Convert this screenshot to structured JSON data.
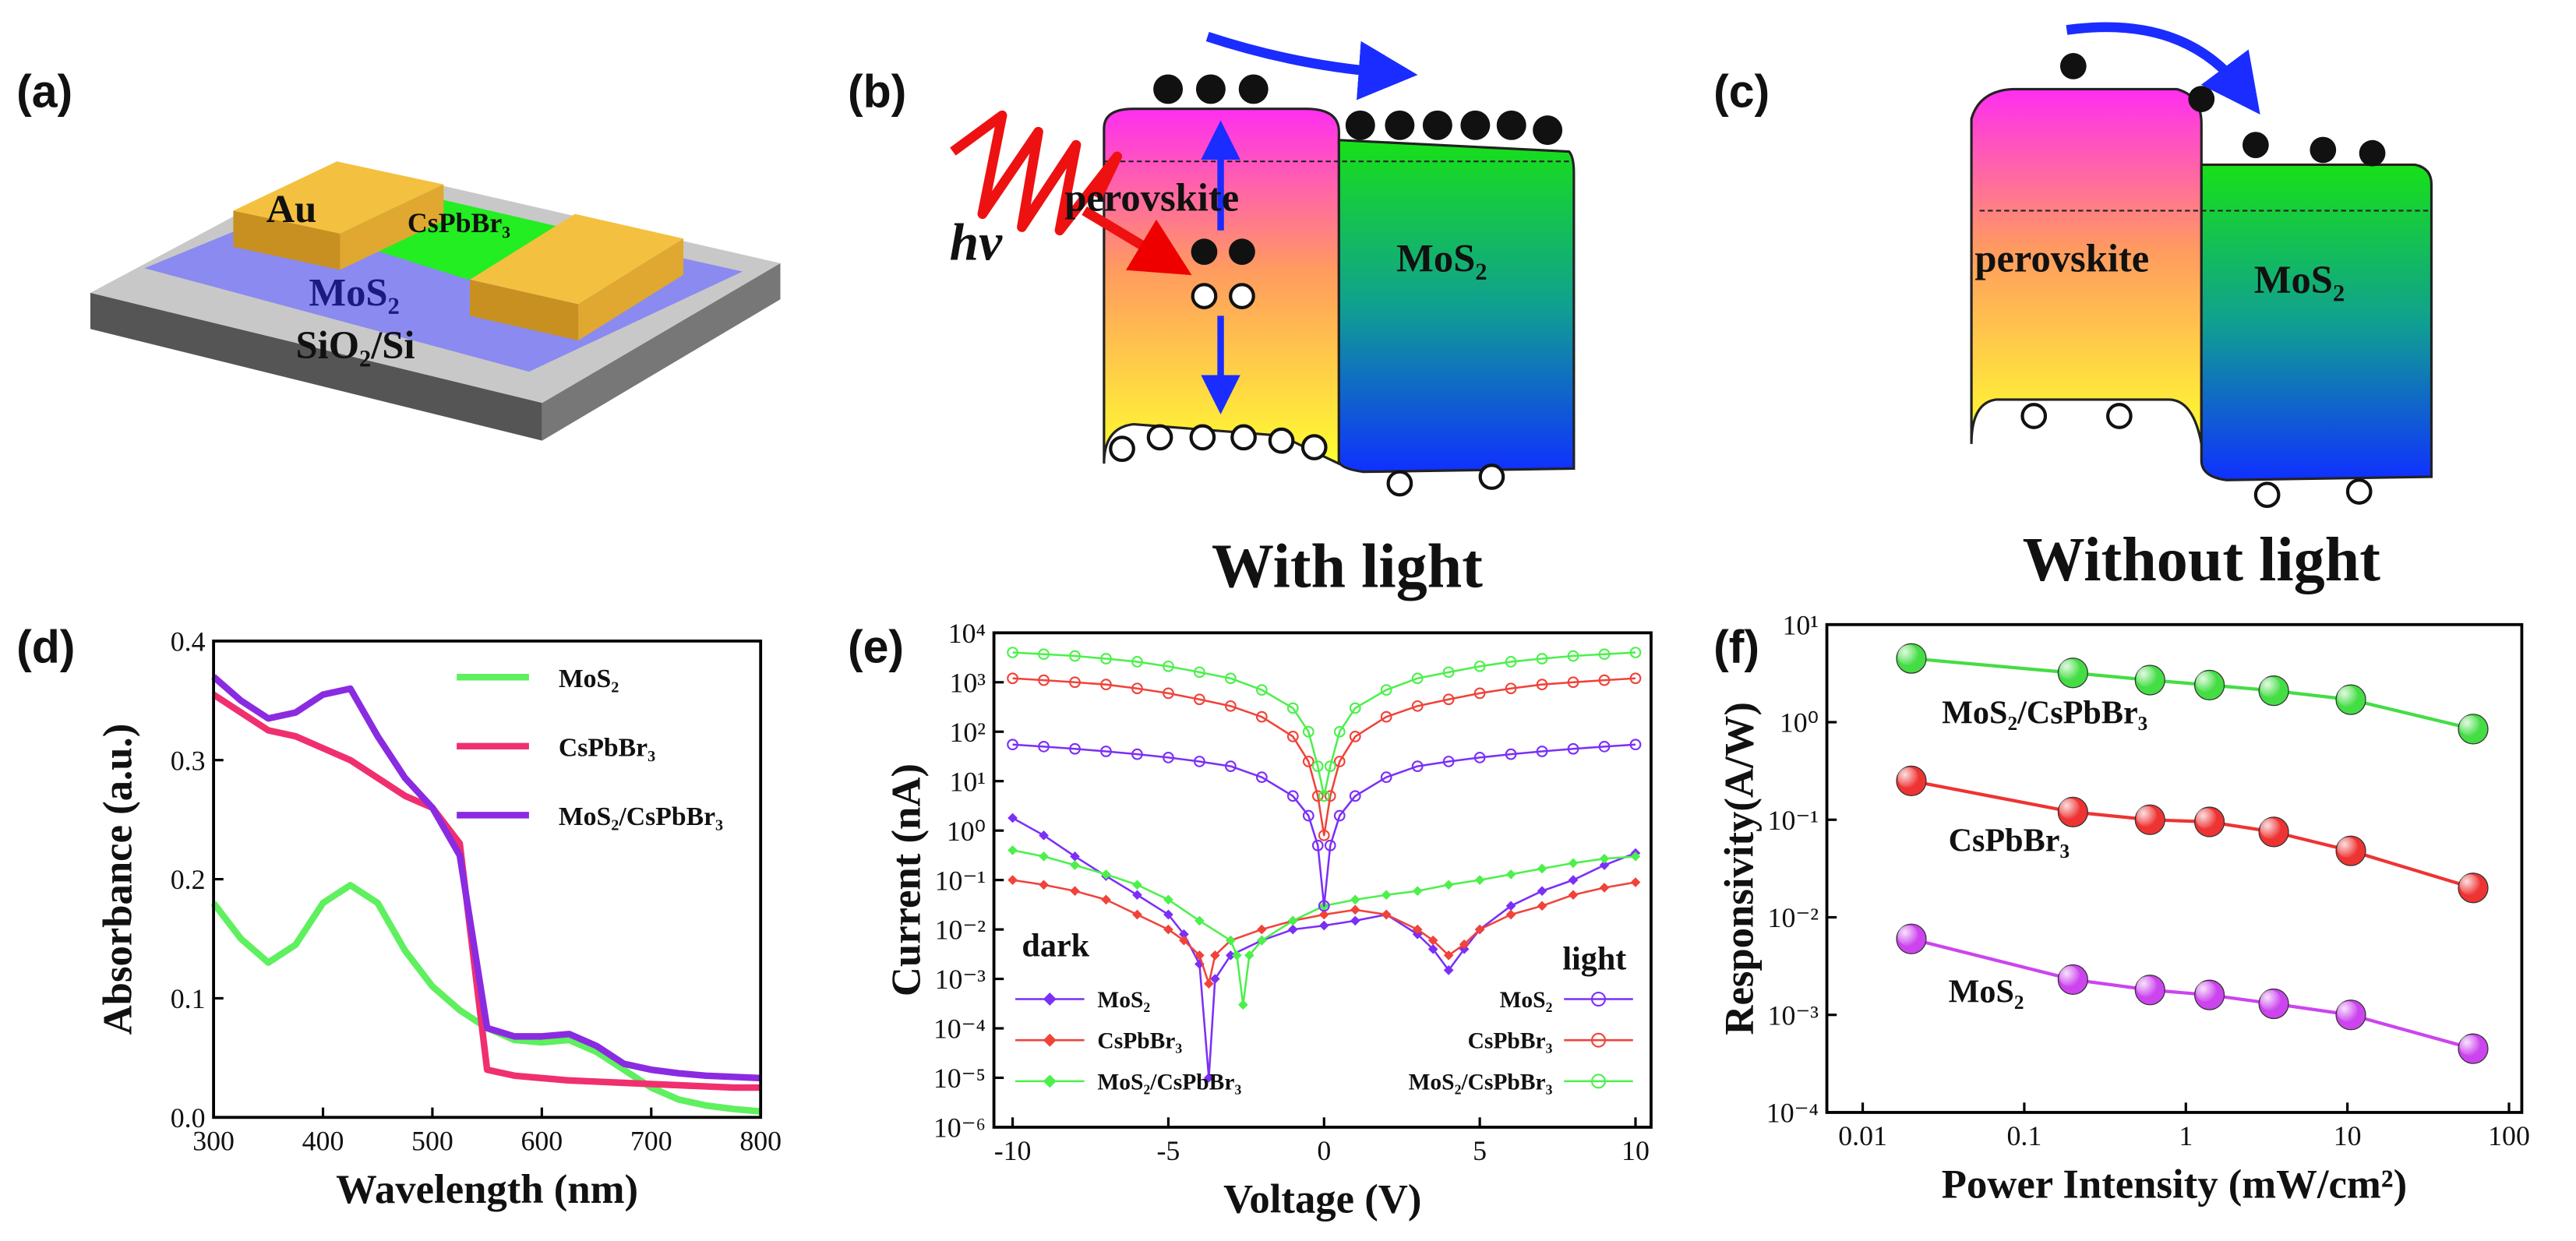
{
  "panel_labels": [
    "(a)",
    "(b)",
    "(c)",
    "(d)",
    "(e)",
    "(f)"
  ],
  "diagrams": {
    "a": {
      "labels": [
        "Au",
        "CsPbBr₃",
        "MoS₂",
        "SiO₂/Si"
      ]
    },
    "b": {
      "light": "hv",
      "left": "perovskite",
      "right": "MoS₂",
      "caption": "With light"
    },
    "c": {
      "left": "perovskite",
      "right": "MoS₂",
      "caption": "Without light"
    }
  },
  "chart_data": [
    {
      "type": "line",
      "xlabel": "Wavelength (nm)",
      "ylabel": "Absorbance (a.u.)",
      "xlim": [
        300,
        800
      ],
      "xticks": [
        300,
        400,
        500,
        600,
        700,
        800
      ],
      "ylim": [
        0,
        0.4
      ],
      "yticks": [
        {
          "value": 0,
          "label": "0.0"
        },
        0.1,
        0.2,
        0.3,
        0.4
      ],
      "legend": "upper right",
      "series": [
        {
          "name": "MoS₂",
          "color": "#5ef05e",
          "x": [
            300,
            325,
            350,
            375,
            400,
            425,
            450,
            475,
            500,
            525,
            550,
            575,
            600,
            625,
            650,
            675,
            700,
            725,
            750,
            775,
            800
          ],
          "values": [
            0.18,
            0.15,
            0.13,
            0.145,
            0.18,
            0.195,
            0.18,
            0.14,
            0.11,
            0.09,
            0.075,
            0.065,
            0.063,
            0.065,
            0.055,
            0.04,
            0.025,
            0.015,
            0.01,
            0.007,
            0.005
          ]
        },
        {
          "name": "CsPbBr₃",
          "color": "#f0306e",
          "x": [
            300,
            325,
            350,
            375,
            400,
            425,
            450,
            475,
            500,
            525,
            550,
            575,
            600,
            625,
            650,
            675,
            700,
            725,
            750,
            775,
            800
          ],
          "values": [
            0.355,
            0.34,
            0.325,
            0.32,
            0.31,
            0.3,
            0.285,
            0.27,
            0.26,
            0.23,
            0.04,
            0.035,
            0.033,
            0.031,
            0.03,
            0.029,
            0.028,
            0.027,
            0.026,
            0.025,
            0.025
          ]
        },
        {
          "name": "MoS₂/CsPbBr₃",
          "color": "#8a2be2",
          "x": [
            300,
            325,
            350,
            375,
            400,
            425,
            450,
            475,
            500,
            525,
            550,
            575,
            600,
            625,
            650,
            675,
            700,
            725,
            750,
            775,
            800
          ],
          "values": [
            0.37,
            0.35,
            0.335,
            0.34,
            0.355,
            0.36,
            0.32,
            0.285,
            0.26,
            0.22,
            0.075,
            0.068,
            0.068,
            0.07,
            0.06,
            0.045,
            0.04,
            0.037,
            0.035,
            0.034,
            0.033
          ]
        }
      ]
    },
    {
      "type": "line",
      "xlabel": "Voltage (V)",
      "ylabel": "Current (nA)",
      "yscale": "log",
      "xlim": [
        -10.6,
        10.5
      ],
      "xticks": [
        -10,
        -5,
        0,
        5,
        10
      ],
      "ylim": [
        1e-06,
        10000
      ],
      "yticks": [
        {
          "value": 1e-06,
          "label": "10⁻⁶"
        },
        {
          "value": 1e-05,
          "label": "10⁻⁵"
        },
        {
          "value": 0.0001,
          "label": "10⁻⁴"
        },
        {
          "value": 0.001,
          "label": "10⁻³"
        },
        {
          "value": 0.01,
          "label": "10⁻²"
        },
        {
          "value": 0.1,
          "label": "10⁻¹"
        },
        {
          "value": 1,
          "label": "10⁰"
        },
        {
          "value": 10,
          "label": "10¹"
        },
        {
          "value": 100,
          "label": "10²"
        },
        {
          "value": 1000,
          "label": "10³"
        },
        {
          "value": 10000,
          "label": "10⁴"
        }
      ],
      "annotations": [
        "dark",
        "light"
      ],
      "series": [
        {
          "name": "MoS₂",
          "color": "#7b2ff7",
          "marker": "diamond",
          "x": [
            -10,
            -9,
            -8,
            -7,
            -6,
            -5,
            -4.5,
            -4,
            -3.7,
            -3.5,
            -3,
            -2,
            -1,
            0,
            1,
            2,
            3,
            3.5,
            4,
            4.5,
            5,
            6,
            7,
            8,
            9,
            10
          ],
          "values": [
            1.8,
            0.8,
            0.3,
            0.12,
            0.05,
            0.02,
            0.008,
            0.002,
            1e-05,
            0.001,
            0.003,
            0.006,
            0.01,
            0.012,
            0.015,
            0.02,
            0.008,
            0.004,
            0.0015,
            0.004,
            0.01,
            0.03,
            0.06,
            0.1,
            0.2,
            0.35
          ]
        },
        {
          "name": "CsPbBr₃",
          "color": "#f0433a",
          "marker": "diamond",
          "x": [
            -10,
            -9,
            -8,
            -7,
            -6,
            -5,
            -4.5,
            -4,
            -3.7,
            -3.5,
            -3,
            -2,
            -1,
            0,
            1,
            2,
            3,
            3.5,
            4,
            4.5,
            5,
            6,
            7,
            8,
            9,
            10
          ],
          "values": [
            0.1,
            0.08,
            0.06,
            0.04,
            0.02,
            0.01,
            0.006,
            0.003,
            0.0008,
            0.003,
            0.006,
            0.01,
            0.015,
            0.02,
            0.025,
            0.02,
            0.01,
            0.006,
            0.003,
            0.005,
            0.01,
            0.02,
            0.03,
            0.05,
            0.07,
            0.09
          ]
        },
        {
          "name": "MoS₂/CsPbBr₃",
          "color": "#4cf04c",
          "marker": "diamond",
          "x": [
            -10,
            -9,
            -8,
            -7,
            -6,
            -5,
            -4,
            -3,
            -2.8,
            -2.6,
            -2.4,
            -2,
            -1,
            0,
            1,
            2,
            3,
            4,
            5,
            6,
            7,
            8,
            9,
            10
          ],
          "values": [
            0.4,
            0.3,
            0.2,
            0.13,
            0.08,
            0.04,
            0.015,
            0.006,
            0.003,
            0.0003,
            0.003,
            0.006,
            0.015,
            0.03,
            0.04,
            0.05,
            0.06,
            0.08,
            0.1,
            0.13,
            0.17,
            0.22,
            0.27,
            0.3
          ]
        },
        {
          "name": "MoS₂",
          "color": "#7b2ff7",
          "marker": "circle",
          "x": [
            -10,
            -9,
            -8,
            -7,
            -6,
            -5,
            -4,
            -3,
            -2,
            -1,
            -0.5,
            -0.2,
            0,
            0.2,
            0.5,
            1,
            2,
            3,
            4,
            5,
            6,
            7,
            8,
            9,
            10
          ],
          "values": [
            55,
            50,
            45,
            40,
            35,
            30,
            25,
            20,
            12,
            5,
            2,
            0.5,
            0.03,
            0.5,
            2,
            5,
            12,
            20,
            25,
            30,
            35,
            40,
            45,
            50,
            55
          ]
        },
        {
          "name": "CsPbBr₃",
          "color": "#f0433a",
          "marker": "circle",
          "x": [
            -10,
            -9,
            -8,
            -7,
            -6,
            -5,
            -4,
            -3,
            -2,
            -1,
            -0.5,
            -0.2,
            0,
            0.2,
            0.5,
            1,
            2,
            3,
            4,
            5,
            6,
            7,
            8,
            9,
            10
          ],
          "values": [
            1200,
            1100,
            1000,
            900,
            750,
            600,
            450,
            330,
            200,
            80,
            25,
            5,
            0.8,
            5,
            25,
            80,
            200,
            330,
            450,
            600,
            750,
            900,
            1000,
            1100,
            1200
          ]
        },
        {
          "name": "MoS₂/CsPbBr₃",
          "color": "#4cf04c",
          "marker": "circle",
          "x": [
            -10,
            -9,
            -8,
            -7,
            -6,
            -5,
            -4,
            -3,
            -2,
            -1,
            -0.5,
            -0.2,
            0,
            0.2,
            0.5,
            1,
            2,
            3,
            4,
            5,
            6,
            7,
            8,
            9,
            10
          ],
          "values": [
            4000,
            3700,
            3400,
            3000,
            2600,
            2100,
            1600,
            1200,
            700,
            300,
            100,
            20,
            5,
            20,
            100,
            300,
            700,
            1200,
            1600,
            2100,
            2600,
            3000,
            3400,
            3700,
            4000
          ]
        }
      ]
    },
    {
      "type": "line",
      "xlabel": "Power Intensity (mW/cm²)",
      "ylabel": "Responsivity(A/W)",
      "xscale": "log",
      "yscale": "log",
      "xlim": [
        0.006,
        120
      ],
      "xticks": [
        0.01,
        0.1,
        1,
        10,
        100
      ],
      "ylim": [
        0.0001,
        10
      ],
      "yticks": [
        {
          "value": 0.0001,
          "label": "10⁻⁴"
        },
        {
          "value": 0.001,
          "label": "10⁻³"
        },
        {
          "value": 0.01,
          "label": "10⁻²"
        },
        {
          "value": 0.1,
          "label": "10⁻¹"
        },
        {
          "value": 1,
          "label": "10⁰"
        },
        {
          "value": 10,
          "label": "10¹"
        }
      ],
      "series": [
        {
          "name": "MoS₂/CsPbBr₃",
          "color": "#44dd44",
          "marker": "sphere",
          "x": [
            0.02,
            0.2,
            0.6,
            1.4,
            3.5,
            10.5,
            60
          ],
          "values": [
            4.5,
            3.2,
            2.7,
            2.4,
            2.1,
            1.7,
            0.85
          ]
        },
        {
          "name": "CsPbBr₃",
          "color": "#ee3333",
          "marker": "sphere",
          "x": [
            0.02,
            0.2,
            0.6,
            1.4,
            3.5,
            10.5,
            60
          ],
          "values": [
            0.25,
            0.12,
            0.1,
            0.095,
            0.075,
            0.048,
            0.02
          ]
        },
        {
          "name": "MoS₂",
          "color": "#cc44ee",
          "marker": "sphere",
          "x": [
            0.02,
            0.2,
            0.6,
            1.4,
            3.5,
            10.5,
            60
          ],
          "values": [
            0.006,
            0.0023,
            0.0018,
            0.0016,
            0.0013,
            0.001,
            0.00045
          ]
        }
      ]
    }
  ]
}
